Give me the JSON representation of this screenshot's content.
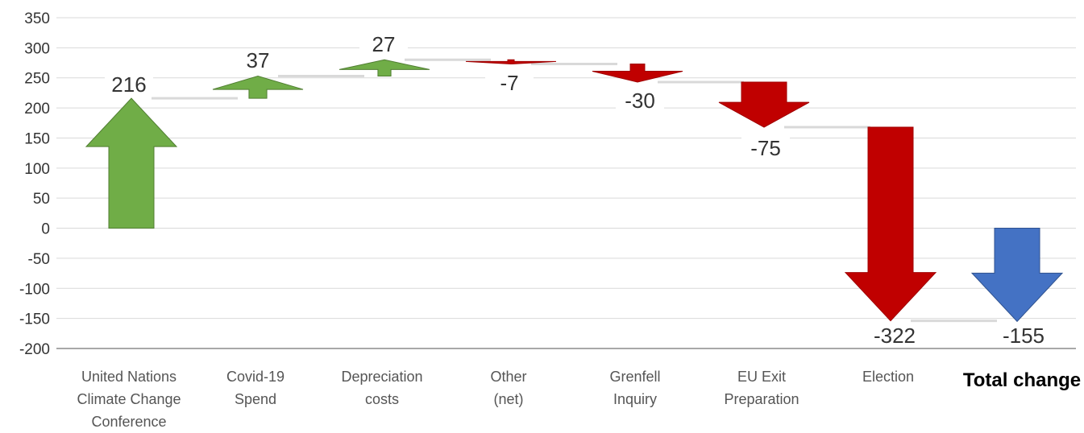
{
  "chart_data": {
    "type": "waterfall",
    "title": "",
    "ylim": [
      -200,
      350
    ],
    "yticks": [
      350,
      300,
      250,
      200,
      150,
      100,
      50,
      0,
      -50,
      -100,
      -150,
      -200
    ],
    "grid": true,
    "categories": [
      [
        "United Nations",
        "Climate Change",
        "Conference"
      ],
      [
        "Covid-19",
        "Spend"
      ],
      [
        "Depreciation",
        "costs"
      ],
      [
        "Other",
        "(net)"
      ],
      [
        "Grenfell",
        "Inquiry"
      ],
      [
        "EU Exit",
        "Preparation"
      ],
      [
        "Election"
      ],
      [
        "Total change"
      ]
    ],
    "values": [
      216,
      37,
      27,
      -7,
      -30,
      -75,
      -322,
      -155
    ],
    "data_labels": [
      "216",
      "37",
      "27",
      "-7",
      "-30",
      "-75",
      "-322",
      "-155"
    ],
    "total_index": 7,
    "colors": {
      "increase": "#70AD47",
      "decrease": "#C00000",
      "total": "#4472C4",
      "grid": "#D9D9D9",
      "axis": "#8C8C8C"
    }
  }
}
